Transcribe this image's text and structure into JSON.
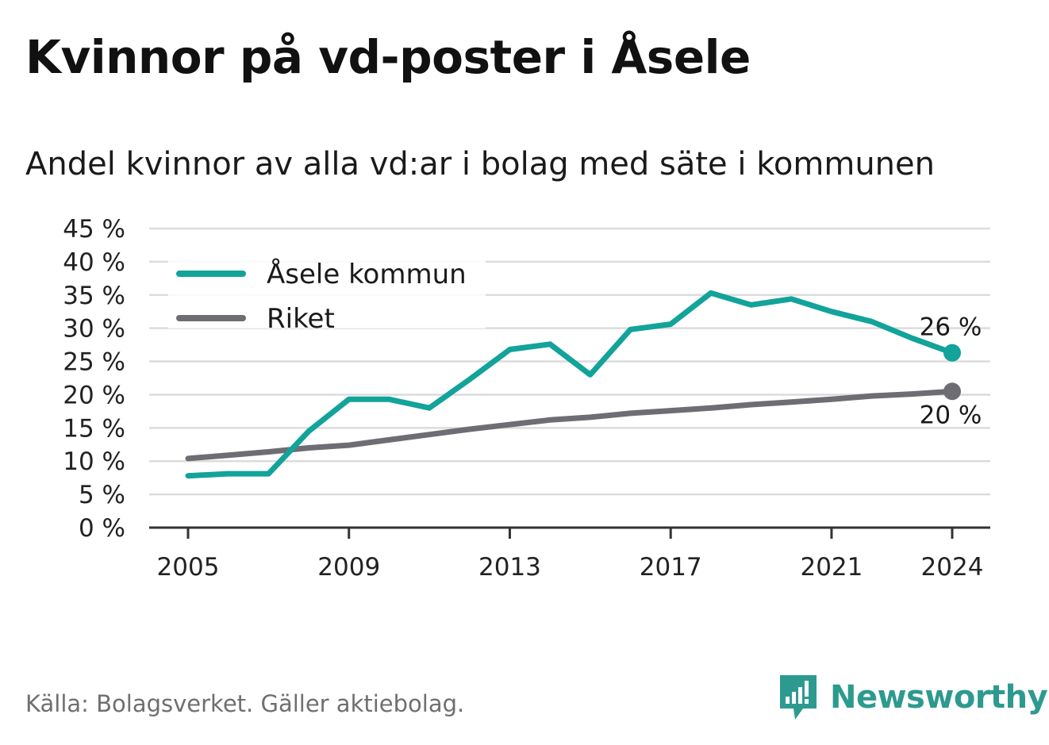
{
  "title": "Kvinnor på vd-poster i Åsele",
  "subtitle": "Andel kvinnor av alla vd:ar i bolag med säte i kommunen",
  "source": "Källa: Bolagsverket. Gäller aktiebolag.",
  "brand": {
    "name": "Newsworthy",
    "icon": "newsworthy-logo-icon",
    "color": "#2d9a8f"
  },
  "chart_data": {
    "type": "line",
    "x": [
      2005,
      2006,
      2007,
      2008,
      2009,
      2010,
      2011,
      2012,
      2013,
      2014,
      2015,
      2016,
      2017,
      2018,
      2019,
      2020,
      2021,
      2022,
      2023,
      2024
    ],
    "x_ticks": [
      "2005",
      "2009",
      "2013",
      "2017",
      "2021",
      "2024"
    ],
    "y_ticks": [
      "0 %",
      "5 %",
      "10 %",
      "15 %",
      "20 %",
      "25 %",
      "30 %",
      "35 %",
      "40 %",
      "45 %"
    ],
    "ylim": [
      0,
      45
    ],
    "grid": true,
    "legend_position": "top-left",
    "series": [
      {
        "name": "Åsele kommun",
        "color": "#12a39a",
        "values": [
          7.8,
          8.1,
          8.1,
          14.5,
          19.3,
          19.3,
          18.0,
          22.3,
          26.8,
          27.6,
          23.0,
          29.8,
          30.6,
          35.3,
          33.5,
          34.4,
          32.5,
          31.0,
          28.5,
          26.3
        ],
        "end_label": "26 %"
      },
      {
        "name": "Riket",
        "color": "#6e6d73",
        "values": [
          10.4,
          10.9,
          11.4,
          12.0,
          12.4,
          13.2,
          14.0,
          14.8,
          15.5,
          16.2,
          16.6,
          17.2,
          17.6,
          18.0,
          18.5,
          18.9,
          19.3,
          19.8,
          20.1,
          20.5
        ],
        "end_label": "20 %"
      }
    ]
  }
}
